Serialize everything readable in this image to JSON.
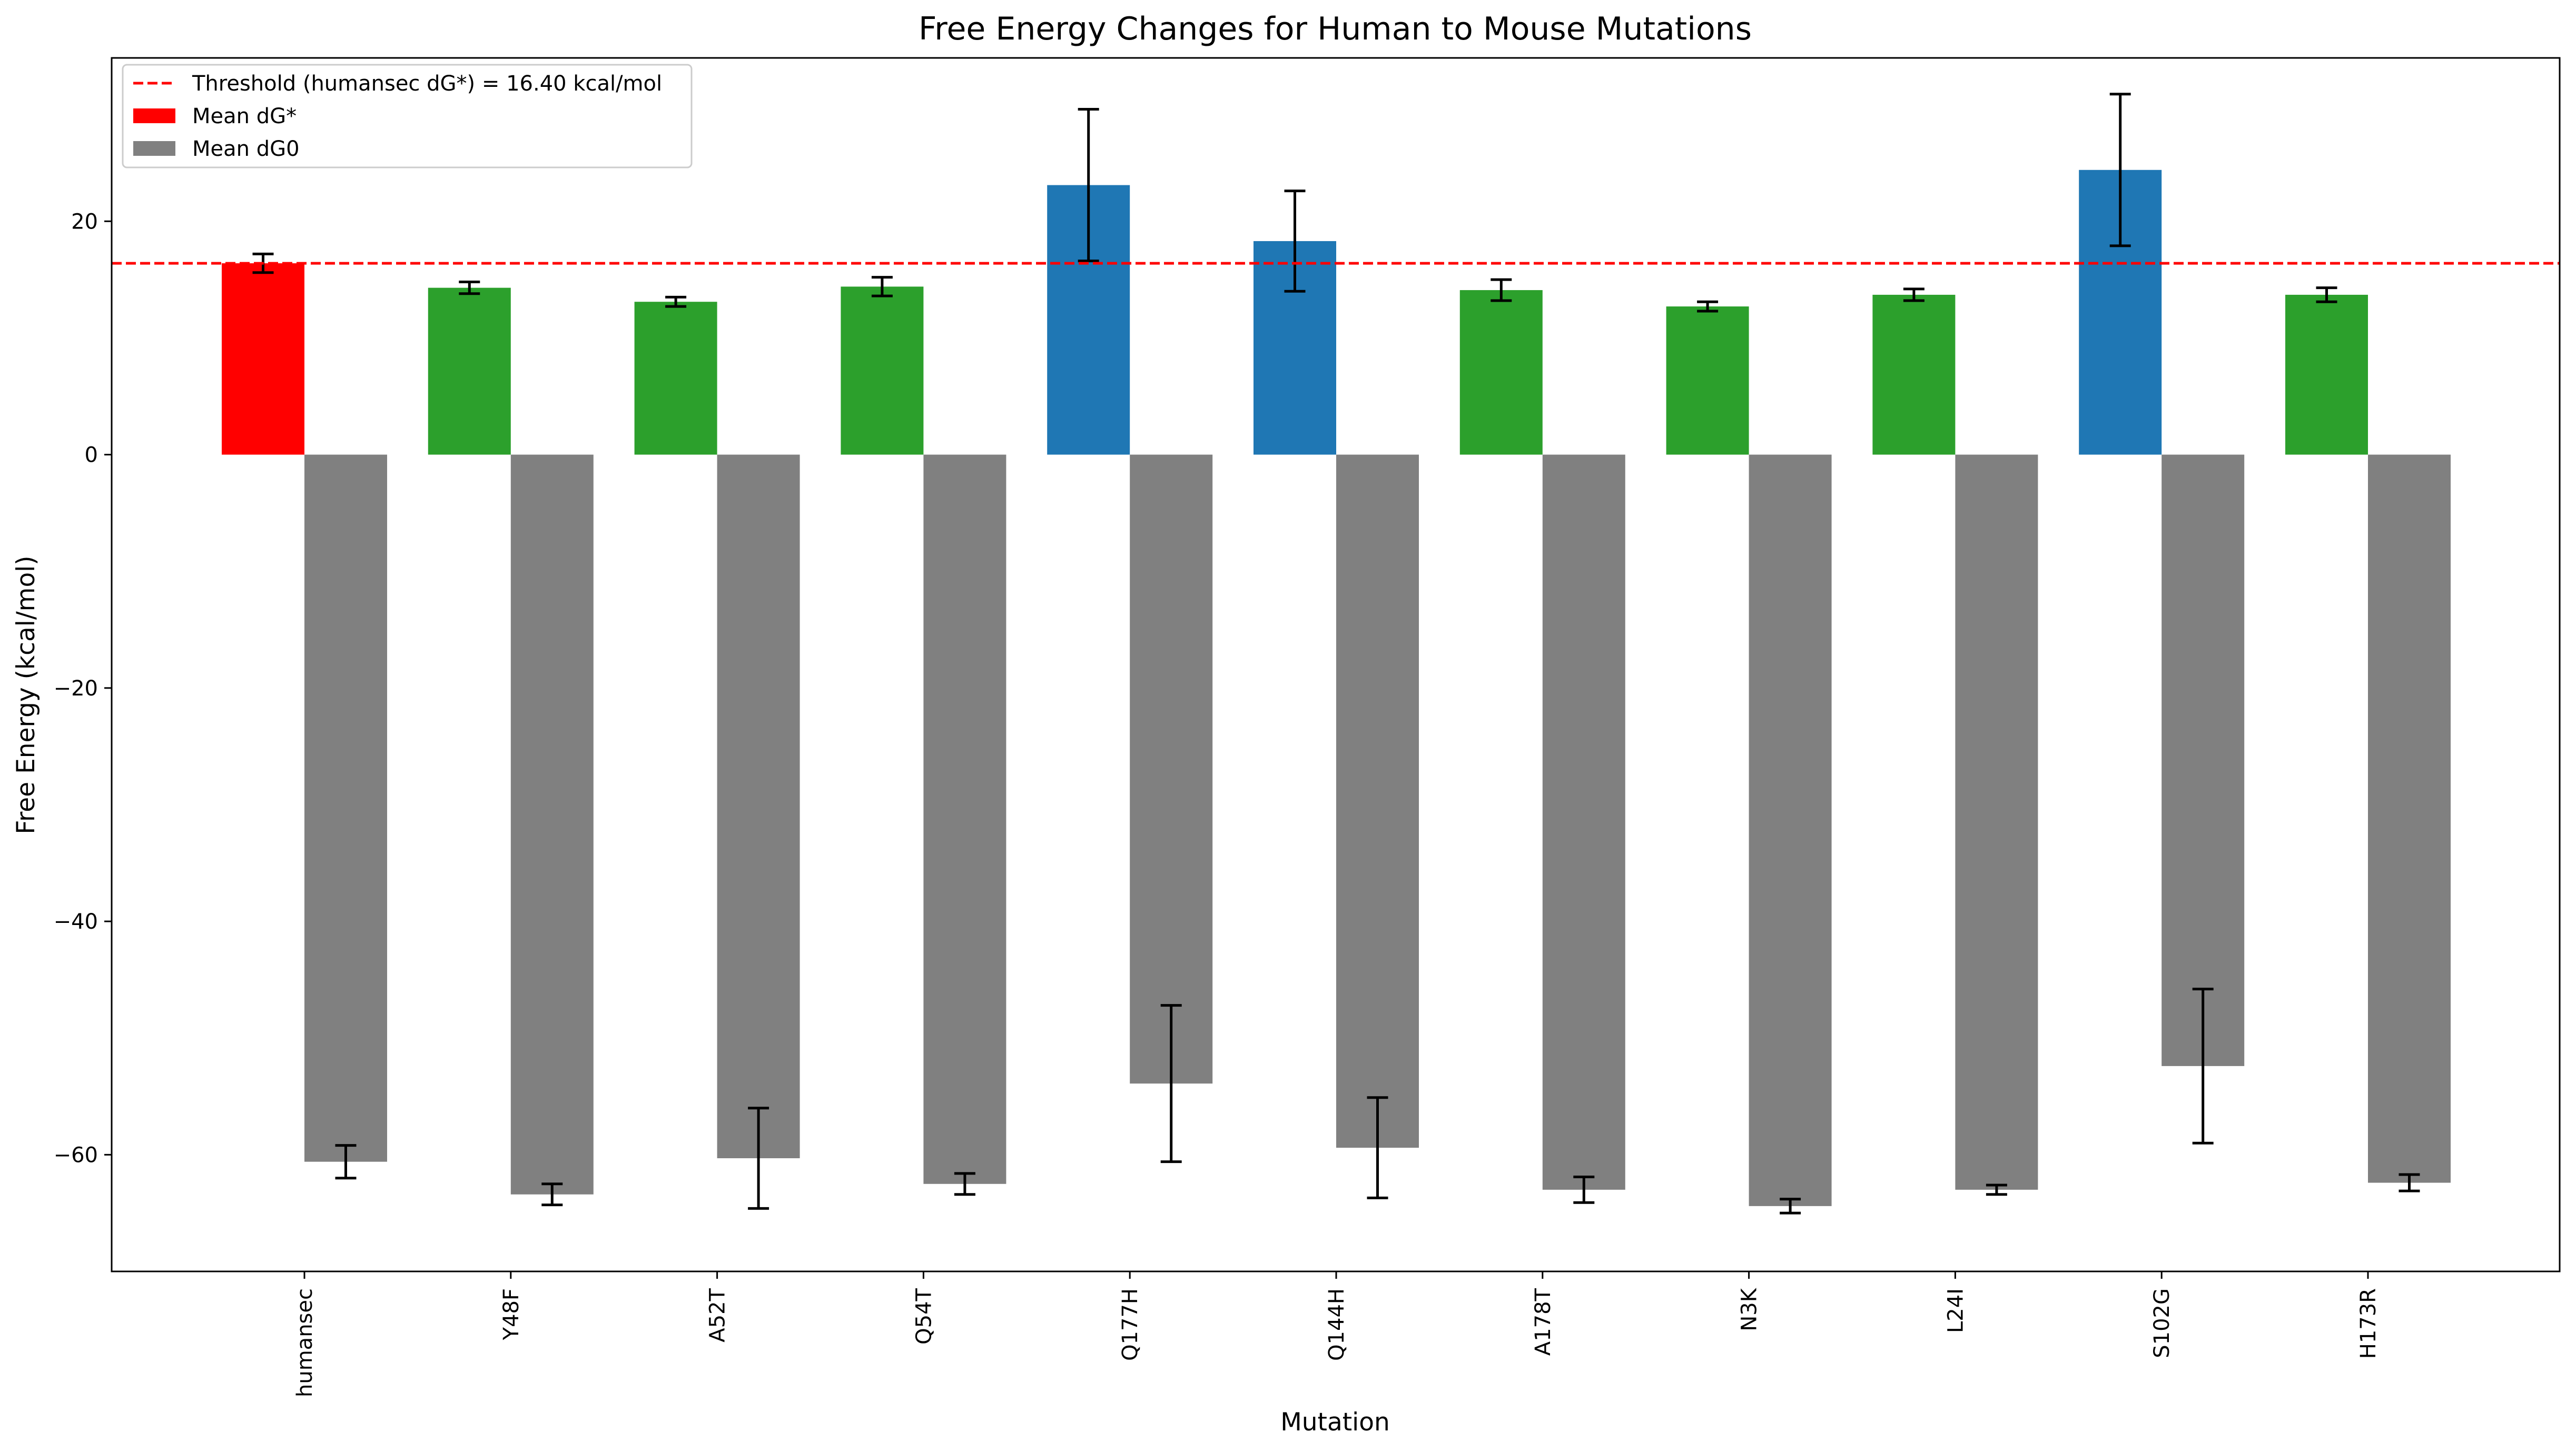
{
  "chart_data": {
    "type": "bar",
    "title": "Free Energy Changes for Human to Mouse Mutations",
    "xlabel": "Mutation",
    "ylabel": "Free Energy (kcal/mol)",
    "categories": [
      "humansec",
      "Y48F",
      "A52T",
      "Q54T",
      "Q177H",
      "Q144H",
      "A178T",
      "N3K",
      "L24I",
      "S102G",
      "H173R"
    ],
    "ylim": [
      -70,
      34
    ],
    "yticks": [
      -60,
      -40,
      -20,
      0,
      20
    ],
    "ytick_labels": [
      "−60",
      "−40",
      "−20",
      "0",
      "20"
    ],
    "series": [
      {
        "name": "Mean dG*",
        "values": [
          16.4,
          14.3,
          13.1,
          14.4,
          23.1,
          18.3,
          14.1,
          12.7,
          13.7,
          24.4,
          13.7
        ],
        "errors": [
          0.8,
          0.5,
          0.4,
          0.8,
          6.5,
          4.3,
          0.9,
          0.4,
          0.5,
          6.5,
          0.6
        ],
        "colors": [
          "#ff0000",
          "#2ca02c",
          "#2ca02c",
          "#2ca02c",
          "#1f77b4",
          "#1f77b4",
          "#2ca02c",
          "#2ca02c",
          "#2ca02c",
          "#1f77b4",
          "#2ca02c"
        ]
      },
      {
        "name": "Mean dG0",
        "values": [
          -60.6,
          -63.4,
          -60.3,
          -62.5,
          -53.9,
          -59.4,
          -63.0,
          -64.4,
          -63.0,
          -52.4,
          -62.4
        ],
        "errors": [
          1.4,
          0.9,
          4.3,
          0.9,
          6.7,
          4.3,
          1.1,
          0.6,
          0.4,
          6.6,
          0.7
        ],
        "color": "#808080"
      }
    ],
    "threshold": {
      "value": 16.4,
      "label": "Threshold (humansec dG*) = 16.40 kcal/mol",
      "color": "#ff0000",
      "style": "dashed"
    },
    "legend": {
      "position": "top-left",
      "entries": [
        "Threshold (humansec dG*) = 16.40 kcal/mol",
        "Mean dG*",
        "Mean dG0"
      ]
    },
    "grid": false
  }
}
